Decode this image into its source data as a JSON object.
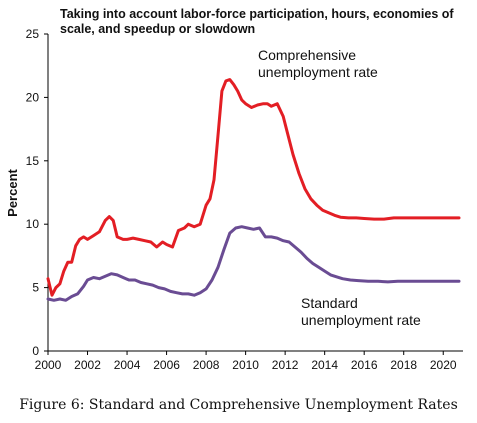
{
  "caption": "Figure 6: Standard and Comprehensive Unemployment Rates",
  "chart_data": {
    "type": "line",
    "subtitle_lines": [
      "Taking into account labor-force participation, hours, economies of",
      "scale, and speedup or slowdown"
    ],
    "xlabel": "",
    "ylabel": "Percent",
    "xlim": [
      2000,
      2021
    ],
    "ylim": [
      0,
      25
    ],
    "xticks": [
      2000,
      2002,
      2004,
      2006,
      2008,
      2010,
      2012,
      2014,
      2016,
      2018,
      2020
    ],
    "xtick_labels": [
      "2000",
      "2002",
      "2004",
      "2006",
      "2008",
      "2010",
      "2012",
      "2014",
      "2016",
      "2018",
      "2020"
    ],
    "yticks": [
      0,
      5,
      10,
      15,
      20,
      25
    ],
    "ytick_labels": [
      "0",
      "5",
      "10",
      "15",
      "20",
      "25"
    ],
    "grid": false,
    "legend": "none",
    "series": [
      {
        "label_lines": [
          "Comprehensive",
          "unemployment rate"
        ],
        "color": "#e31e24",
        "x": [
          2000.0,
          2000.2,
          2000.4,
          2000.6,
          2000.8,
          2001.0,
          2001.2,
          2001.4,
          2001.6,
          2001.8,
          2002.0,
          2002.3,
          2002.6,
          2002.9,
          2003.1,
          2003.3,
          2003.5,
          2003.8,
          2004.0,
          2004.3,
          2004.6,
          2004.9,
          2005.2,
          2005.5,
          2005.8,
          2006.0,
          2006.3,
          2006.6,
          2006.9,
          2007.1,
          2007.4,
          2007.7,
          2008.0,
          2008.2,
          2008.4,
          2008.6,
          2008.8,
          2009.0,
          2009.2,
          2009.4,
          2009.6,
          2009.8,
          2010.0,
          2010.3,
          2010.6,
          2010.9,
          2011.1,
          2011.3,
          2011.6,
          2011.9,
          2012.1,
          2012.4,
          2012.7,
          2013.0,
          2013.3,
          2013.6,
          2013.9,
          2014.2,
          2014.5,
          2014.8,
          2015.2,
          2015.6,
          2016.0,
          2016.5,
          2017.0,
          2017.5,
          2018.0,
          2019.0,
          2020.0,
          2020.8
        ],
        "values": [
          5.7,
          4.4,
          5.0,
          5.3,
          6.3,
          7.0,
          7.0,
          8.3,
          8.8,
          9.0,
          8.8,
          9.1,
          9.4,
          10.3,
          10.6,
          10.3,
          9.0,
          8.8,
          8.8,
          8.9,
          8.8,
          8.7,
          8.6,
          8.2,
          8.6,
          8.4,
          8.2,
          9.5,
          9.7,
          10.0,
          9.8,
          10.0,
          11.5,
          12.0,
          13.5,
          17.0,
          20.5,
          21.3,
          21.4,
          21.0,
          20.5,
          19.8,
          19.5,
          19.2,
          19.4,
          19.5,
          19.5,
          19.3,
          19.5,
          18.5,
          17.3,
          15.5,
          14.0,
          12.8,
          12.0,
          11.5,
          11.1,
          10.9,
          10.7,
          10.55,
          10.5,
          10.5,
          10.45,
          10.4,
          10.4,
          10.5,
          10.5,
          10.5,
          10.5,
          10.5
        ]
      },
      {
        "label_lines": [
          "Standard",
          "unemployment rate"
        ],
        "color": "#6a4c93",
        "x": [
          2000.0,
          2000.3,
          2000.6,
          2000.9,
          2001.2,
          2001.5,
          2001.8,
          2002.0,
          2002.3,
          2002.6,
          2002.9,
          2003.2,
          2003.5,
          2003.8,
          2004.1,
          2004.4,
          2004.7,
          2005.0,
          2005.3,
          2005.6,
          2005.9,
          2006.2,
          2006.5,
          2006.8,
          2007.1,
          2007.4,
          2007.7,
          2008.0,
          2008.3,
          2008.6,
          2008.9,
          2009.2,
          2009.5,
          2009.8,
          2010.1,
          2010.4,
          2010.7,
          2011.0,
          2011.3,
          2011.6,
          2011.9,
          2012.2,
          2012.5,
          2012.8,
          2013.1,
          2013.4,
          2013.7,
          2014.0,
          2014.3,
          2014.6,
          2014.9,
          2015.3,
          2015.7,
          2016.2,
          2016.7,
          2017.2,
          2017.7,
          2018.5,
          2019.5,
          2020.8
        ],
        "values": [
          4.1,
          4.0,
          4.1,
          4.0,
          4.3,
          4.5,
          5.1,
          5.6,
          5.8,
          5.7,
          5.9,
          6.1,
          6.0,
          5.8,
          5.6,
          5.6,
          5.4,
          5.3,
          5.2,
          5.0,
          4.9,
          4.7,
          4.6,
          4.5,
          4.5,
          4.4,
          4.6,
          4.9,
          5.6,
          6.6,
          8.0,
          9.3,
          9.7,
          9.8,
          9.7,
          9.6,
          9.7,
          9.0,
          9.0,
          8.9,
          8.7,
          8.6,
          8.2,
          7.8,
          7.3,
          6.9,
          6.6,
          6.3,
          6.0,
          5.85,
          5.7,
          5.6,
          5.55,
          5.5,
          5.5,
          5.45,
          5.5,
          5.5,
          5.5,
          5.5
        ]
      }
    ]
  }
}
